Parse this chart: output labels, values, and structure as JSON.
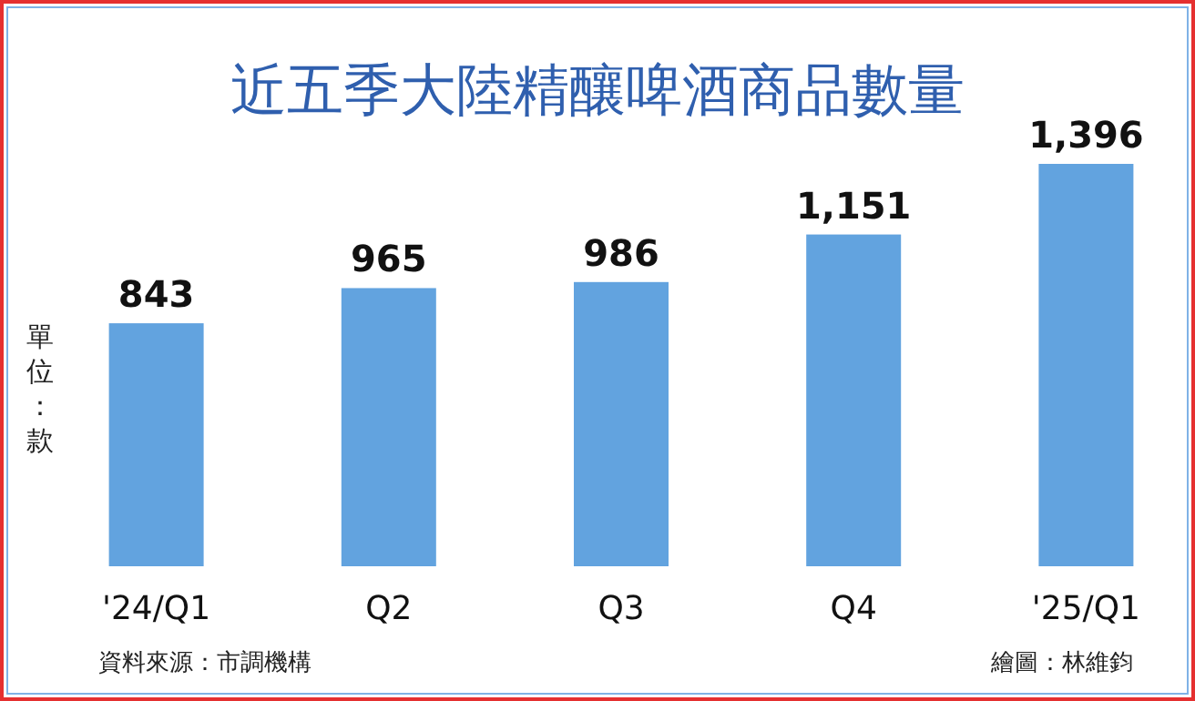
{
  "chart_data": {
    "type": "bar",
    "title": "近五季大陸精釀啤酒商品數量",
    "ylabel": "單位：款",
    "categories": [
      "'24/Q1",
      "Q2",
      "Q3",
      "Q4",
      "'25/Q1"
    ],
    "values": [
      843,
      965,
      986,
      1151,
      1396
    ],
    "color": "#62a3df",
    "value_labels": [
      "843",
      "965",
      "986",
      "1,151",
      "1,396"
    ],
    "annotations": [
      "資料來源：市調機構",
      "繪圖：林維鈞"
    ]
  }
}
